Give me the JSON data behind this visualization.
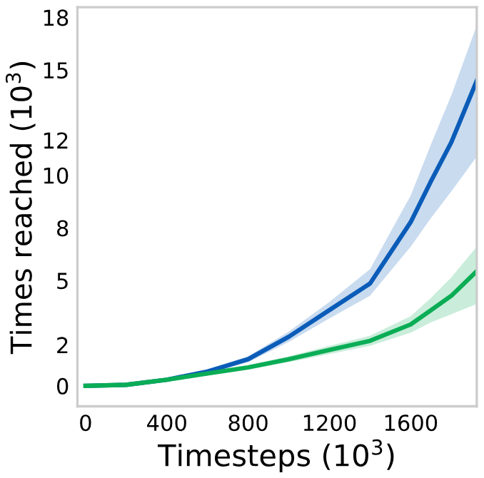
{
  "chart_data": {
    "type": "line",
    "xlabel": "Timesteps (10$^{3}$)",
    "ylabel": "Times reached (10$^{3}$)",
    "x": [
      0,
      200,
      400,
      600,
      800,
      1000,
      1200,
      1400,
      1600,
      1700,
      1800,
      1925
    ],
    "series": [
      {
        "color": "#0a5cb8",
        "values": [
          0,
          0.05,
          0.3,
          0.7,
          1.3,
          2.4,
          3.7,
          5.0,
          8.0,
          10.0,
          11.9,
          14.9
        ],
        "lower": [
          0,
          0.03,
          0.25,
          0.6,
          1.15,
          2.15,
          3.3,
          4.4,
          6.8,
          8.2,
          9.5,
          11.2
        ],
        "upper": [
          0,
          0.07,
          0.35,
          0.8,
          1.45,
          2.65,
          4.1,
          5.7,
          9.3,
          11.8,
          14.2,
          17.6
        ]
      },
      {
        "color": "#0aad55",
        "values": [
          0,
          0.05,
          0.3,
          0.6,
          0.9,
          1.3,
          1.75,
          2.2,
          3.0,
          3.7,
          4.4,
          5.6
        ],
        "lower": [
          0,
          0.03,
          0.25,
          0.5,
          0.8,
          1.15,
          1.55,
          1.95,
          2.6,
          3.1,
          3.5,
          4.0
        ],
        "upper": [
          0,
          0.07,
          0.35,
          0.7,
          1.0,
          1.45,
          1.95,
          2.45,
          3.4,
          4.3,
          5.3,
          6.8
        ]
      }
    ],
    "xlim": [
      -40,
      1925
    ],
    "ylim": [
      -1,
      18.5
    ],
    "xticks": [
      0,
      400,
      800,
      1200,
      1600
    ],
    "yticks": [
      0,
      2,
      {
        "value": 5.143,
        "label": "5"
      },
      {
        "value": 7.714,
        "label": "8"
      },
      {
        "value": 10.286,
        "label": "10"
      },
      12,
      {
        "value": 15.429,
        "label": "15"
      },
      18
    ],
    "grid": false,
    "legend": false,
    "line_style": "solid",
    "marker": "none"
  }
}
